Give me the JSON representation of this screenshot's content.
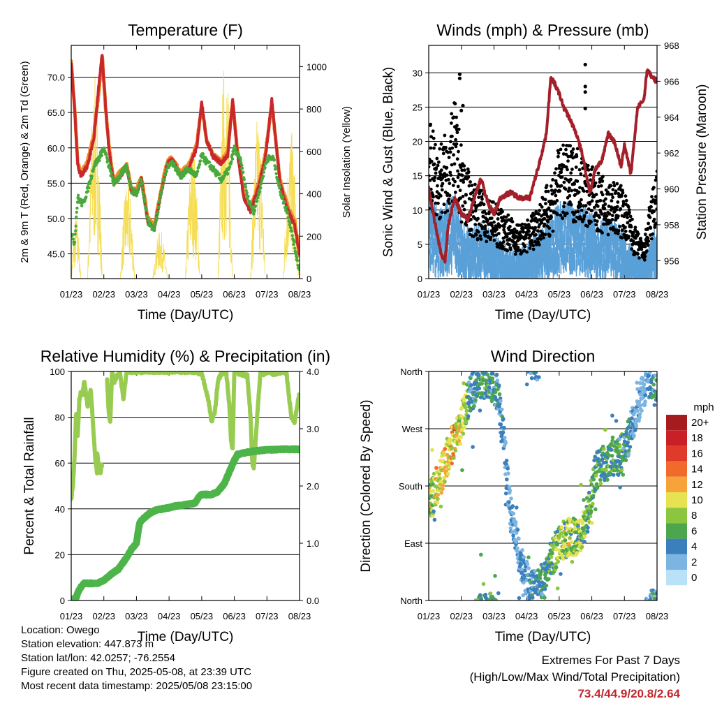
{
  "info": {
    "location": "Location: Owego",
    "elevation": "Station elevation: 447.873 m",
    "latlon": "Station lat/lon: 42.0257; -76.2554",
    "created": "Figure created on Thu, 2025-05-08, at 23:39 UTC",
    "recent": "Most recent data timestamp: 2025/05/08 23:15:00"
  },
  "extremes": {
    "title": "Extremes For Past 7 Days",
    "subtitle": "(High/Low/Max Wind/Total Precipitation)",
    "values": "73.4/44.9/20.8/2.64"
  },
  "colors": {
    "t2m": "#c8282d",
    "t9m": "#f28a2c",
    "td": "#4aa83c",
    "solar": "#f5dd55",
    "wind": "#5aa0d8",
    "gust": "#000000",
    "pressure": "#a3202a",
    "rh": "#98cc50",
    "precip": "#4cb448"
  },
  "chart_data": [
    {
      "type": "line",
      "title": "Temperature (F)",
      "xlabel": "Time (Day/UTC)",
      "ylabel": "2m & 9m T (Red, Orange) & 2m Td (Green)",
      "y2label": "Solar Insolation (Yellow)",
      "x_ticks": [
        "01/23",
        "02/23",
        "03/23",
        "04/23",
        "05/23",
        "06/23",
        "07/23",
        "08/23"
      ],
      "xlim": [
        1,
        8
      ],
      "ylim": [
        41.5,
        74.5
      ],
      "y_ticks": [
        "45.0",
        "50.0",
        "55.0",
        "60.0",
        "65.0",
        "70.0"
      ],
      "y2lim": [
        0,
        1100
      ],
      "y2_ticks": [
        "0",
        "200",
        "400",
        "600",
        "800",
        "1000"
      ],
      "grid": true,
      "series": [
        {
          "key": "t9m",
          "x": [
            1.0,
            1.1,
            1.2,
            1.3,
            1.5,
            1.7,
            1.85,
            1.95,
            2.05,
            2.15,
            2.3,
            2.5,
            2.7,
            2.85,
            3.0,
            3.15,
            3.35,
            3.55,
            3.75,
            3.95,
            4.1,
            4.35,
            4.6,
            4.85,
            5.0,
            5.15,
            5.35,
            5.6,
            5.8,
            5.95,
            6.1,
            6.3,
            6.5,
            6.75,
            6.95,
            7.15,
            7.4,
            7.65,
            7.85,
            8.0
          ],
          "y": [
            72,
            66,
            58,
            56.5,
            58,
            62,
            68,
            73,
            66,
            60.5,
            55.5,
            56.5,
            57.5,
            54.2,
            54,
            56,
            50,
            48.8,
            54,
            58.2,
            58.5,
            56.5,
            57.5,
            60.5,
            66,
            61,
            59,
            58,
            59.5,
            66.5,
            59.5,
            53.2,
            51.5,
            55,
            59,
            66.2,
            55.5,
            51.5,
            49.5,
            45
          ]
        },
        {
          "key": "t2m",
          "x": [
            1.0,
            1.1,
            1.2,
            1.3,
            1.5,
            1.7,
            1.85,
            1.95,
            2.05,
            2.15,
            2.3,
            2.5,
            2.7,
            2.85,
            3.0,
            3.15,
            3.35,
            3.55,
            3.75,
            3.95,
            4.1,
            4.35,
            4.6,
            4.85,
            5.0,
            5.15,
            5.35,
            5.6,
            5.8,
            5.95,
            6.1,
            6.3,
            6.5,
            6.75,
            6.95,
            7.15,
            7.4,
            7.65,
            7.85,
            8.0
          ],
          "y": [
            72,
            66,
            57.5,
            56,
            57.5,
            61.5,
            69,
            73.2,
            66,
            60,
            55,
            56,
            57.2,
            53.8,
            53.5,
            55.5,
            49.5,
            48.5,
            53.5,
            57.8,
            58.3,
            56,
            57,
            60,
            66.5,
            61,
            58.8,
            57.8,
            59,
            66.8,
            59,
            52.8,
            51,
            54.5,
            58.5,
            66.8,
            55,
            51,
            49,
            45
          ]
        },
        {
          "key": "td",
          "x": [
            1.0,
            1.1,
            1.2,
            1.35,
            1.5,
            1.7,
            1.85,
            2.0,
            2.15,
            2.3,
            2.5,
            2.7,
            2.85,
            3.0,
            3.15,
            3.35,
            3.55,
            3.75,
            3.95,
            4.1,
            4.35,
            4.6,
            4.85,
            5.0,
            5.15,
            5.35,
            5.6,
            5.85,
            6.0,
            6.2,
            6.4,
            6.6,
            6.8,
            7.0,
            7.2,
            7.4,
            7.65,
            7.85,
            8.0
          ],
          "y": [
            48,
            46.5,
            53,
            52,
            54,
            57.5,
            58.5,
            60,
            57.5,
            55,
            56,
            57.5,
            54,
            53.5,
            55.5,
            49.5,
            48.5,
            53.5,
            57.5,
            58,
            56,
            57,
            56,
            59,
            58,
            57,
            55.5,
            57,
            60,
            58,
            53,
            51,
            54.5,
            58.5,
            58.5,
            54,
            50.5,
            46,
            42.5
          ]
        },
        {
          "key": "solar",
          "axis": "y2",
          "peaks": [
            [
              1.0,
              1.3,
              300
            ],
            [
              1.5,
              1.95,
              950
            ],
            [
              2.5,
              2.95,
              480
            ],
            [
              3.5,
              3.95,
              230
            ],
            [
              4.5,
              4.95,
              640
            ],
            [
              5.5,
              5.95,
              1070
            ],
            [
              6.5,
              6.95,
              780
            ],
            [
              7.5,
              7.98,
              700
            ]
          ]
        }
      ]
    },
    {
      "type": "scatter",
      "title": "Winds (mph) & Pressure (mb)",
      "xlabel": "Time (Day/UTC)",
      "ylabel": "Sonic Wind & Gust (Blue, Black)",
      "y2label": "Station Pressure (Maroon)",
      "x_ticks": [
        "01/23",
        "02/23",
        "03/23",
        "04/23",
        "05/23",
        "06/23",
        "07/23",
        "08/23"
      ],
      "xlim": [
        1,
        8
      ],
      "ylim": [
        0,
        34
      ],
      "y_ticks": [
        "0",
        "5",
        "10",
        "15",
        "20",
        "25",
        "30"
      ],
      "y2lim": [
        955,
        968
      ],
      "y2_ticks": [
        "956",
        "958",
        "960",
        "962",
        "964",
        "966",
        "968"
      ],
      "grid": true,
      "series": [
        {
          "key": "wind",
          "profile": {
            "x": [
              1.0,
              1.3,
              1.6,
              1.8,
              2.0,
              2.3,
              2.6,
              2.9,
              3.2,
              3.5,
              3.8,
              4.1,
              4.4,
              4.7,
              5.0,
              5.3,
              5.6,
              5.9,
              6.2,
              6.5,
              6.8,
              7.0,
              7.3,
              7.6,
              7.8,
              8.0
            ],
            "y": [
              9,
              7,
              8,
              9,
              6,
              5,
              6,
              5,
              4,
              3,
              3,
              4,
              5,
              6,
              8,
              8,
              8,
              7,
              6,
              6,
              6,
              5,
              3,
              2,
              4,
              6
            ]
          }
        },
        {
          "key": "gust",
          "profile": {
            "x": [
              1.0,
              1.3,
              1.6,
              1.8,
              2.0,
              2.3,
              2.6,
              2.9,
              3.2,
              3.5,
              3.8,
              4.1,
              4.4,
              4.7,
              5.0,
              5.3,
              5.6,
              5.9,
              6.2,
              6.5,
              6.8,
              7.0,
              7.3,
              7.6,
              7.8,
              8.0
            ],
            "y": [
              18,
              15,
              17,
              20,
              15,
              11,
              10,
              9,
              8,
              7,
              6,
              7,
              9,
              11,
              15,
              15,
              15,
              13,
              12,
              11,
              11,
              10,
              6,
              4,
              9,
              13
            ]
          }
        },
        {
          "key": "pressure",
          "axis": "y2",
          "x": [
            1.0,
            1.2,
            1.4,
            1.5,
            1.6,
            1.8,
            2.0,
            2.2,
            2.4,
            2.6,
            2.8,
            3.0,
            3.2,
            3.5,
            3.8,
            4.1,
            4.4,
            4.6,
            4.75,
            4.9,
            5.0,
            5.15,
            5.3,
            5.5,
            5.7,
            5.85,
            5.95,
            6.1,
            6.3,
            6.5,
            6.7,
            6.9,
            7.0,
            7.2,
            7.4,
            7.6,
            7.7,
            7.85,
            8.0
          ],
          "y": [
            960,
            958,
            956.2,
            956,
            958,
            959.5,
            958.6,
            958.3,
            959.5,
            960.6,
            959.3,
            958.6,
            959.5,
            959.8,
            959.5,
            959.5,
            961.5,
            963,
            966.3,
            965.7,
            965.3,
            964.5,
            964,
            963.2,
            962,
            960.6,
            959.8,
            961.1,
            961.5,
            963.1,
            962.6,
            961.2,
            962.5,
            960.8,
            964.5,
            965,
            966.7,
            966.2,
            966
          ]
        }
      ],
      "outliers": [
        [
          1.95,
          29.8
        ],
        [
          1.95,
          29.2
        ],
        [
          5.8,
          31.2
        ],
        [
          5.8,
          28
        ],
        [
          5.8,
          27.2
        ],
        [
          5.8,
          24.8
        ],
        [
          2.05,
          25.2
        ],
        [
          2.0,
          24.5
        ]
      ]
    },
    {
      "type": "line",
      "title": "Relative Humidity (%) & Precipitation (in)",
      "xlabel": "Time (Day/UTC)",
      "ylabel": "Percent & Total Rainfall",
      "x_ticks": [
        "01/23",
        "02/23",
        "03/23",
        "04/23",
        "05/23",
        "06/23",
        "07/23",
        "08/23"
      ],
      "xlim": [
        1,
        8
      ],
      "ylim": [
        0,
        100
      ],
      "y_ticks": [
        "0",
        "20",
        "40",
        "60",
        "80",
        "100"
      ],
      "y2lim": [
        0,
        4.0
      ],
      "y2_ticks": [
        "0.0",
        "1.0",
        "2.0",
        "3.0",
        "4.0"
      ],
      "grid": true,
      "series": [
        {
          "key": "rh",
          "segments": [
            {
              "x": [
                1.0,
                1.05,
                1.1,
                1.15,
                1.2,
                1.25,
                1.3,
                1.35,
                1.4,
                1.5,
                1.6,
                1.7,
                1.75,
                1.8
              ],
              "y": [
                44,
                50,
                62,
                82,
                72,
                88,
                91,
                90,
                96,
                85,
                92,
                70,
                60,
                55
              ]
            },
            {
              "x": [
                1.8,
                1.85,
                1.9,
                1.95
              ],
              "y": [
                64,
                57,
                56,
                60
              ]
            },
            {
              "x": [
                2.1,
                2.15,
                2.2,
                2.25,
                2.3,
                2.4,
                2.5,
                2.6,
                2.7,
                2.8,
                3.0,
                3.5,
                3.8,
                4.0,
                4.5,
                4.8,
                5.0,
                5.2,
                5.3,
                5.4,
                5.5,
                5.6,
                5.75,
                5.85,
                5.9,
                5.95,
                6.0,
                6.2,
                6.4,
                6.5,
                6.55,
                6.6,
                6.7,
                6.8,
                6.9,
                7.0,
                7.1,
                7.2,
                7.5,
                7.6,
                7.75,
                7.85,
                7.95,
                8.0
              ],
              "y": [
                96,
                82,
                78,
                100,
                95,
                98,
                99,
                88,
                100,
                100,
                100,
                100,
                100,
                100,
                100,
                100,
                99,
                88,
                78,
                82,
                96,
                99,
                100,
                85,
                70,
                66,
                100,
                99,
                98,
                80,
                60,
                58,
                80,
                100,
                99,
                100,
                100,
                99,
                100,
                99,
                80,
                78,
                87,
                90
              ]
            }
          ]
        },
        {
          "key": "precip",
          "axis": "y2",
          "x": [
            1.0,
            1.15,
            1.25,
            1.4,
            1.8,
            2.0,
            2.2,
            2.45,
            2.7,
            2.85,
            3.0,
            3.05,
            3.1,
            3.15,
            3.25,
            3.4,
            3.6,
            3.8,
            4.0,
            4.2,
            4.6,
            4.8,
            4.9,
            5.0,
            5.3,
            5.5,
            5.7,
            5.85,
            6.0,
            6.05,
            6.1,
            6.25,
            6.5,
            6.8,
            7.0,
            7.5,
            8.0
          ],
          "y": [
            0,
            0.05,
            0.2,
            0.3,
            0.3,
            0.35,
            0.45,
            0.55,
            0.75,
            0.9,
            1.0,
            1.2,
            1.35,
            1.4,
            1.45,
            1.52,
            1.58,
            1.6,
            1.62,
            1.65,
            1.68,
            1.7,
            1.8,
            1.85,
            1.85,
            1.9,
            2.05,
            2.25,
            2.45,
            2.5,
            2.55,
            2.57,
            2.6,
            2.62,
            2.63,
            2.64,
            2.64
          ]
        }
      ]
    },
    {
      "type": "scatter",
      "title": "Wind Direction",
      "xlabel": "Time (Day/UTC)",
      "ylabel": "Direction (Colored By Speed)",
      "x_ticks": [
        "01/23",
        "02/23",
        "03/23",
        "04/23",
        "05/23",
        "06/23",
        "07/23",
        "08/23"
      ],
      "xlim": [
        1,
        8
      ],
      "ylim": [
        0,
        360
      ],
      "y_ticks": [
        "North",
        "East",
        "South",
        "West",
        "North"
      ],
      "grid": true,
      "direction_profile": {
        "x": [
          1.0,
          1.1,
          1.2,
          1.4,
          1.6,
          1.8,
          1.95,
          2.1,
          2.3,
          2.6,
          2.9,
          3.1,
          3.3,
          3.5,
          3.7,
          3.9,
          4.1,
          4.3,
          4.5,
          4.7,
          5.0,
          5.3,
          5.5,
          5.7,
          5.9,
          6.1,
          6.3,
          6.6,
          6.9,
          7.1,
          7.3,
          7.5,
          7.7,
          7.9,
          8.0
        ],
        "y": [
          170,
          160,
          175,
          200,
          230,
          255,
          270,
          300,
          330,
          340,
          345,
          330,
          250,
          140,
          90,
          50,
          20,
          15,
          30,
          60,
          90,
          100,
          100,
          110,
          140,
          200,
          215,
          220,
          230,
          250,
          290,
          320,
          345,
          350,
          340
        ]
      },
      "legend": {
        "title": "mph",
        "labels": [
          "20+",
          "18",
          "16",
          "14",
          "12",
          "10",
          "8",
          "6",
          "4",
          "2",
          "0"
        ],
        "colors": [
          "#a51b1e",
          "#c82026",
          "#e03b2a",
          "#f26a2a",
          "#f6a339",
          "#e6e251",
          "#8cc63f",
          "#4ca64d",
          "#3b80bd",
          "#7cb5e1",
          "#b9e1f7"
        ],
        "placement": "right"
      }
    }
  ]
}
